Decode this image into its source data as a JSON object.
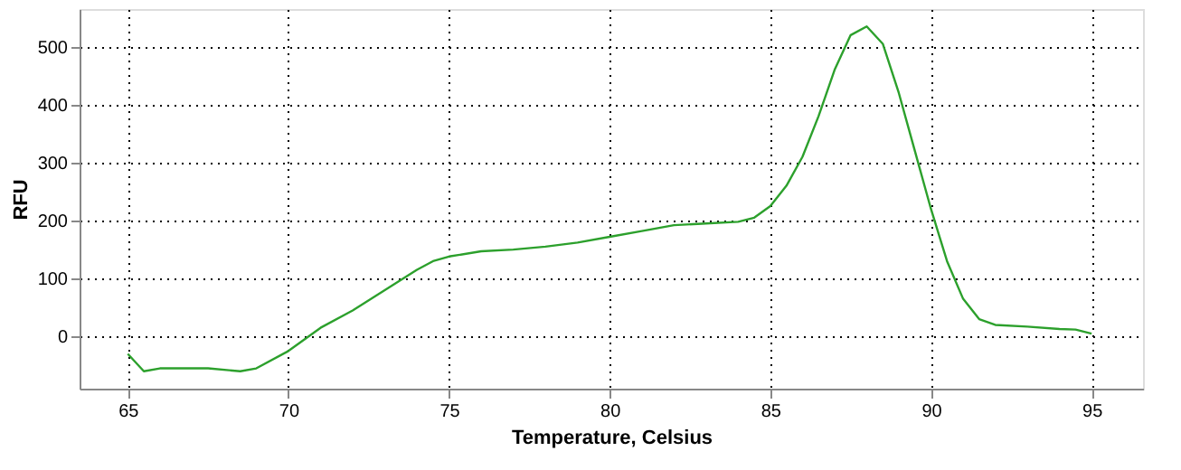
{
  "chart_data": {
    "type": "line",
    "xlabel": "Temperature, Celsius",
    "ylabel": "RFU",
    "x": [
      65,
      65.5,
      66,
      67,
      67.5,
      68.5,
      69,
      70,
      71,
      72,
      73,
      74,
      74.5,
      75,
      76,
      77,
      78,
      79,
      80,
      81,
      82,
      83,
      84,
      84.5,
      85,
      85.5,
      86,
      86.5,
      87,
      87.5,
      88,
      88.5,
      89,
      89.5,
      90,
      90.5,
      91,
      91.5,
      92,
      93,
      94,
      94.5,
      95
    ],
    "series": [
      {
        "color": "#2ca02c",
        "values": [
          -30,
          -60,
          -55,
          -55,
          -55,
          -60,
          -55,
          -25,
          15,
          45,
          80,
          115,
          130,
          138,
          147,
          150,
          155,
          162,
          172,
          182,
          192,
          195,
          198,
          205,
          225,
          260,
          310,
          380,
          460,
          520,
          535,
          505,
          420,
          320,
          220,
          130,
          65,
          30,
          20,
          17,
          13,
          12,
          5
        ]
      }
    ],
    "xlim": [
      63.5,
      96.6
    ],
    "ylim": [
      -90,
      565
    ],
    "xticks": [
      65,
      70,
      75,
      80,
      85,
      90,
      95
    ],
    "yticks": [
      0,
      100,
      200,
      300,
      400,
      500
    ],
    "grid": true,
    "legend": false,
    "marker": "none",
    "line_style": "solid"
  }
}
